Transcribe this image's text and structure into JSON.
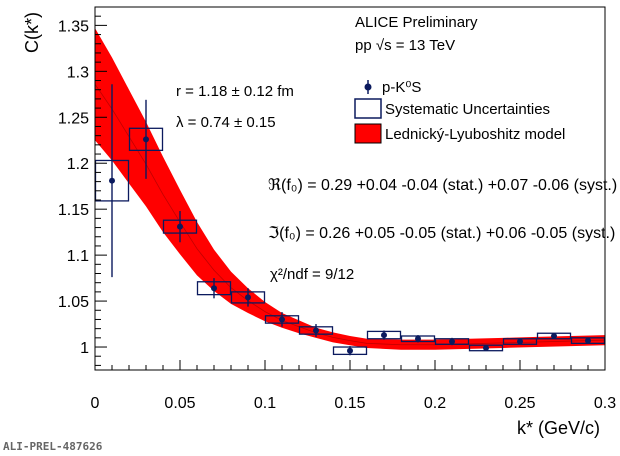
{
  "chart_data": {
    "type": "scatter",
    "title": "",
    "xlabel": "k* (GeV/c)",
    "ylabel": "C(k*)",
    "xlim": [
      0,
      0.3
    ],
    "ylim": [
      0.975,
      1.37
    ],
    "x_ticks": [
      0,
      0.05,
      0.1,
      0.15,
      0.2,
      0.25,
      0.3
    ],
    "x_tick_labels": [
      "0",
      "0.05",
      "0.1",
      "0.15",
      "0.2",
      "0.25",
      "0.3"
    ],
    "y_ticks": [
      1,
      1.05,
      1.1,
      1.15,
      1.2,
      1.25,
      1.3,
      1.35
    ],
    "y_tick_labels": [
      "1",
      "1.05",
      "1.1",
      "1.15",
      "1.2",
      "1.25",
      "1.3",
      "1.35"
    ],
    "grid": false,
    "legend_position": "top-right",
    "header": {
      "experiment": "ALICE Preliminary",
      "system": "pp √s = 13 TeV"
    },
    "legend": [
      {
        "label": "p-K⁰S",
        "style": "point"
      },
      {
        "label": "Systematic Uncertainties",
        "style": "box"
      },
      {
        "label": "Lednický-Lyuboshitz model",
        "style": "band"
      }
    ],
    "fit_params": {
      "radius": "r = 1.18 ± 0.12 fm",
      "lambda": "λ = 0.74 ± 0.15"
    },
    "annotations": {
      "re_f0": "ℜ(f₀) = 0.29 +0.04 -0.04 (stat.) +0.07 -0.06 (syst.) fm",
      "im_f0": "ℑ(f₀) = 0.26 +0.05 -0.05 (stat.) +0.06 -0.05 (syst.) fm",
      "chi2": "χ²/ndf = 9/12"
    },
    "series": [
      {
        "name": "p-K⁰S",
        "x": [
          0.01,
          0.03,
          0.05,
          0.07,
          0.09,
          0.11,
          0.13,
          0.15,
          0.17,
          0.19,
          0.21,
          0.23,
          0.25,
          0.27,
          0.29
        ],
        "y": [
          1.181,
          1.226,
          1.131,
          1.064,
          1.054,
          1.03,
          1.018,
          0.996,
          1.013,
          1.009,
          1.006,
          0.999,
          1.006,
          1.012,
          1.007
        ],
        "stat_err": [
          0.105,
          0.043,
          0.017,
          0.011,
          0.01,
          0.008,
          0.007,
          0.005,
          0.005,
          0.004,
          0.004,
          0.003,
          0.003,
          0.003,
          0.003
        ],
        "syst_err": [
          0.022,
          0.012,
          0.007,
          0.007,
          0.006,
          0.004,
          0.004,
          0.004,
          0.004,
          0.003,
          0.003,
          0.003,
          0.003,
          0.003,
          0.003
        ]
      }
    ],
    "model_band": {
      "name": "Lednický-Lyuboshitz model",
      "x": [
        0.0,
        0.01,
        0.02,
        0.03,
        0.04,
        0.05,
        0.06,
        0.07,
        0.08,
        0.09,
        0.1,
        0.11,
        0.12,
        0.13,
        0.14,
        0.15,
        0.16,
        0.18,
        0.2,
        0.22,
        0.24,
        0.26,
        0.28,
        0.3
      ],
      "y_low": [
        1.225,
        1.203,
        1.178,
        1.153,
        1.125,
        1.101,
        1.078,
        1.061,
        1.047,
        1.037,
        1.028,
        1.021,
        1.015,
        1.01,
        1.005,
        1.002,
        0.999,
        0.997,
        0.997,
        0.998,
        0.999,
        1.0,
        1.001,
        1.002
      ],
      "y_high": [
        1.347,
        1.315,
        1.28,
        1.245,
        1.207,
        1.171,
        1.136,
        1.106,
        1.082,
        1.064,
        1.049,
        1.037,
        1.029,
        1.021,
        1.016,
        1.012,
        1.009,
        1.008,
        1.008,
        1.009,
        1.01,
        1.011,
        1.012,
        1.013
      ],
      "color": "#ff0000"
    },
    "colors": {
      "points": "#0b1a5e",
      "syst_box": "#0b1a5e",
      "band": "#ff0000",
      "band_center": "#c00000"
    }
  },
  "footer": {
    "label": "ALI-PREL-487626"
  }
}
